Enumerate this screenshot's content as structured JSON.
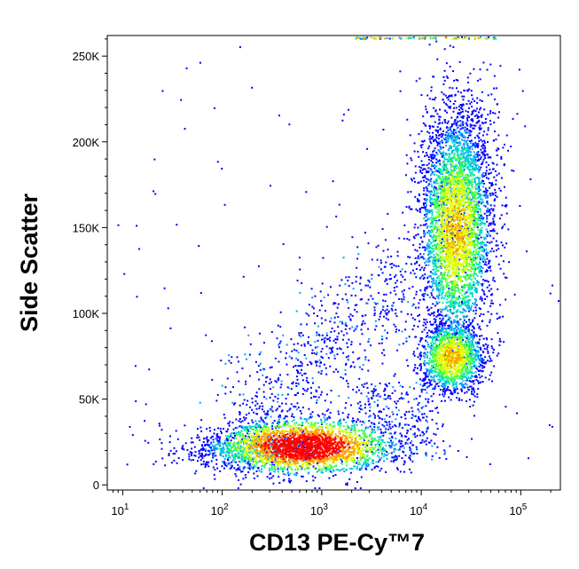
{
  "chart_data": {
    "type": "scatter",
    "subtype": "flow-cytometry-density-dot-plot",
    "xlabel": "CD13 PE-Cy™7",
    "ylabel": "Side Scatter",
    "x_scale": "log",
    "xlim": [
      7,
      250000
    ],
    "ylim": [
      -3000,
      262000
    ],
    "x_ticks": [
      {
        "value": 10,
        "base": "10",
        "exp": "1"
      },
      {
        "value": 100,
        "base": "10",
        "exp": "2"
      },
      {
        "value": 1000,
        "base": "10",
        "exp": "3"
      },
      {
        "value": 10000,
        "base": "10",
        "exp": "4"
      },
      {
        "value": 100000,
        "base": "10",
        "exp": "5"
      }
    ],
    "y_ticks": [
      {
        "value": 0,
        "label": "0"
      },
      {
        "value": 50000,
        "label": "50K"
      },
      {
        "value": 100000,
        "label": "100K"
      },
      {
        "value": 150000,
        "label": "150K"
      },
      {
        "value": 200000,
        "label": "200K"
      },
      {
        "value": 250000,
        "label": "250K"
      }
    ],
    "density_colors": [
      "#0000ff",
      "#00a0ff",
      "#00e0c0",
      "#40ff40",
      "#e0ff00",
      "#ffa000",
      "#ff0000"
    ],
    "populations": [
      {
        "x_center": 650,
        "y_center": 23000,
        "peak_density": "high"
      },
      {
        "x_center": 20000,
        "y_center": 75000,
        "peak_density": "medium"
      },
      {
        "x_center": 22000,
        "y_center": 150000,
        "peak_density": "medium"
      }
    ],
    "grid": false
  }
}
